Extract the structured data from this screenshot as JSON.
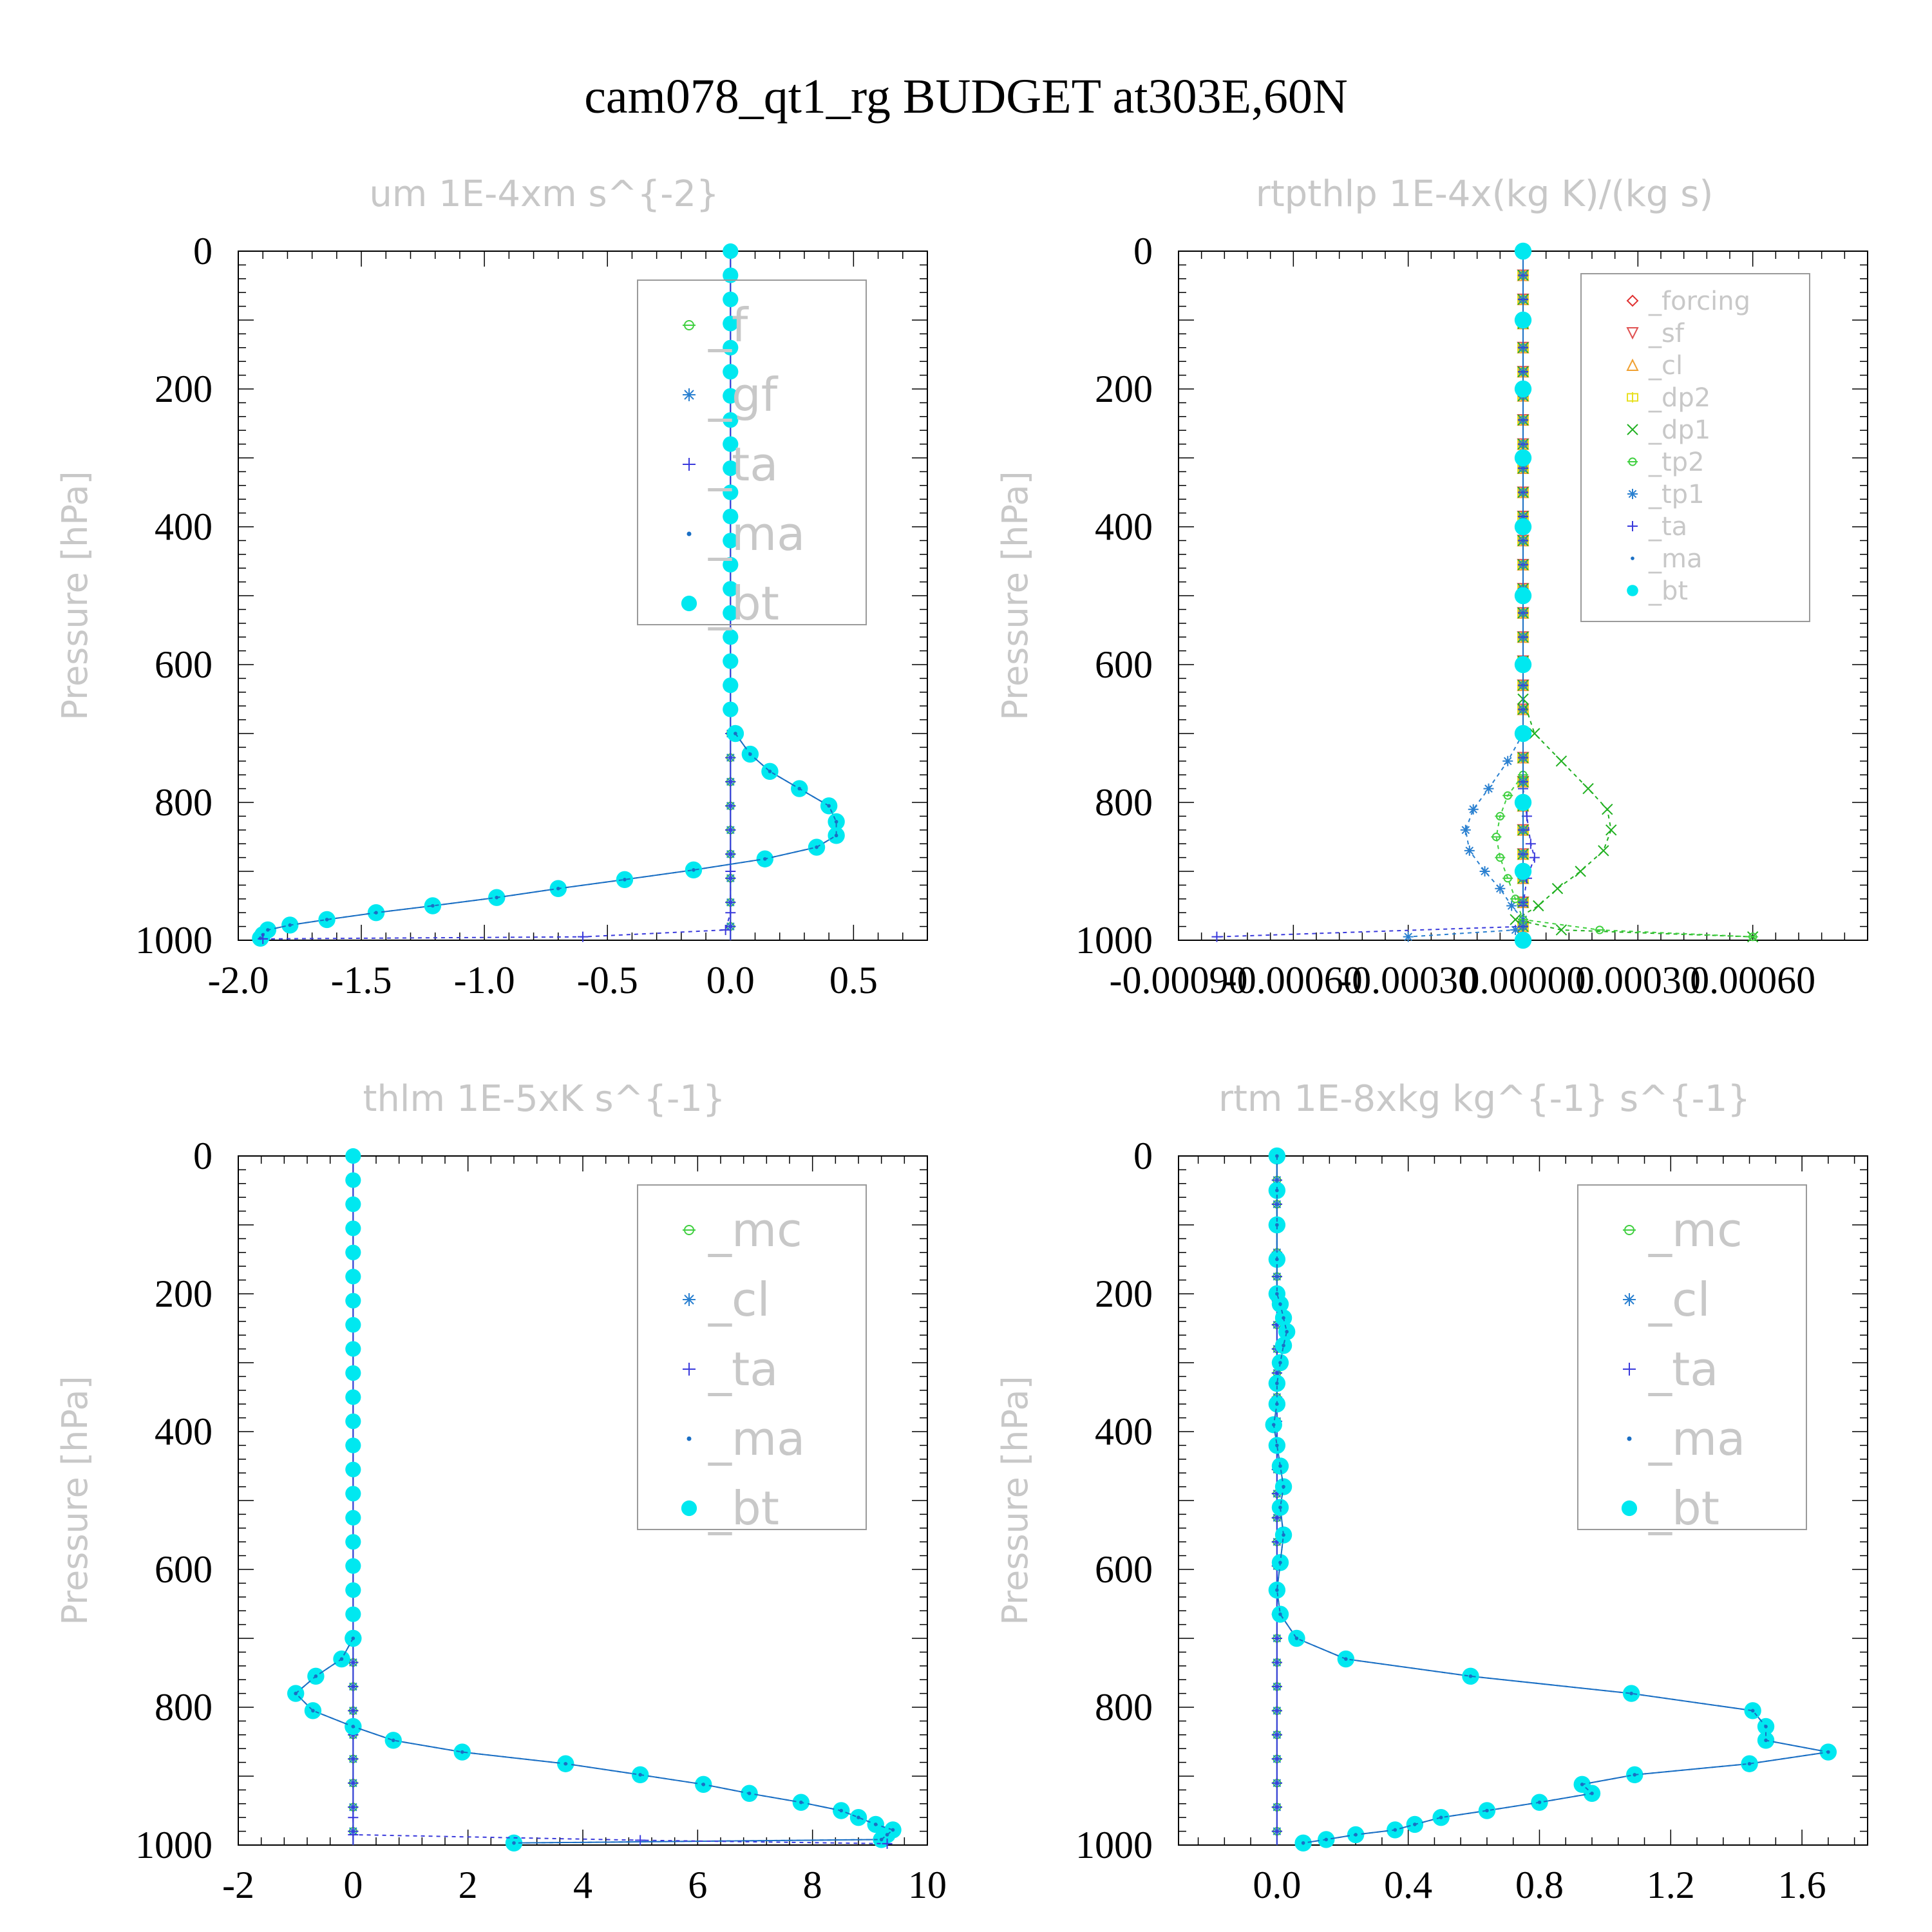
{
  "figure_title": "cam078_qt1_rg  BUDGET at303E,60N",
  "colors": {
    "bt": "#00e8f0",
    "ma": "#1a6fc4",
    "ta": "#3a3adc",
    "gf": "#2a80d0",
    "f": "#40d040",
    "mc": "#40d040",
    "cl_blue": "#2a80d0",
    "forcing": "#e03030",
    "sf": "#e05050",
    "cl_orange": "#f0a030",
    "dp2": "#e8e020",
    "dp1": "#20b020",
    "tp2": "#40d040",
    "tp1": "#2a80d0",
    "legend_text": "#c8c8c8"
  },
  "chart_data": [
    {
      "type": "line",
      "title": "um  1E-4xm s^{-2}",
      "ylabel": "Pressure [hPa]",
      "xlabel": "",
      "xlim": [
        -2.0,
        0.8
      ],
      "ylim": [
        1000,
        0
      ],
      "xticks": [
        "-2.0",
        "-1.5",
        "-1.0",
        "-0.5",
        "0.0",
        "0.5"
      ],
      "xtick_values": [
        -2.0,
        -1.5,
        -1.0,
        -0.5,
        0.0,
        0.5
      ],
      "yticks": [
        0,
        200,
        400,
        600,
        800,
        1000
      ],
      "legend": {
        "position": "top-right",
        "style": "big",
        "entries": [
          {
            "label": "_f",
            "key": "f"
          },
          {
            "label": "_gf",
            "key": "gf"
          },
          {
            "label": "_ta",
            "key": "ta"
          },
          {
            "label": "_ma",
            "key": "ma"
          },
          {
            "label": "_bt",
            "key": "bt"
          }
        ]
      },
      "series": [
        {
          "name": "_bt",
          "key": "bt",
          "pressure": [
            700,
            730,
            755,
            780,
            805,
            828,
            848,
            865,
            882,
            898,
            912,
            925,
            938,
            950,
            960,
            970,
            978,
            985,
            992,
            997
          ],
          "values": [
            0.02,
            0.08,
            0.16,
            0.28,
            0.4,
            0.43,
            0.43,
            0.35,
            0.14,
            -0.15,
            -0.43,
            -0.7,
            -0.95,
            -1.21,
            -1.44,
            -1.64,
            -1.79,
            -1.88,
            -1.9,
            -1.91
          ]
        },
        {
          "name": "_ma",
          "key": "ma",
          "pressure": [
            700,
            730,
            755,
            780,
            805,
            828,
            848,
            865,
            882,
            898,
            912,
            925,
            938,
            950,
            960,
            970,
            978,
            985,
            992,
            997
          ],
          "values": [
            0.02,
            0.08,
            0.16,
            0.28,
            0.4,
            0.43,
            0.43,
            0.35,
            0.14,
            -0.15,
            -0.43,
            -0.7,
            -0.95,
            -1.21,
            -1.44,
            -1.64,
            -1.79,
            -1.88,
            -1.9,
            -1.91
          ]
        },
        {
          "name": "_ta",
          "key": "ta",
          "pressure": [
            900,
            960,
            985,
            995,
            998
          ],
          "values": [
            0.0,
            0.0,
            -0.02,
            -0.6,
            -1.9
          ]
        }
      ]
    },
    {
      "type": "line",
      "title": "rtpthlp  1E-4x(kg K)/(kg s)",
      "ylabel": "Pressure [hPa]",
      "xlabel": "",
      "xlim": [
        -0.0009,
        0.0009
      ],
      "ylim": [
        1000,
        0
      ],
      "xticks": [
        "-0.00090",
        "-0.00060",
        "-0.00030",
        "0.00000",
        "0.00030",
        "0.00060"
      ],
      "xtick_values": [
        -0.0009,
        -0.0006,
        -0.0003,
        0.0,
        0.0003,
        0.0006
      ],
      "yticks": [
        0,
        200,
        400,
        600,
        800,
        1000
      ],
      "legend": {
        "position": "top-right",
        "style": "small",
        "entries": [
          {
            "label": "_forcing",
            "key": "forcing"
          },
          {
            "label": "_sf",
            "key": "sf"
          },
          {
            "label": "_cl",
            "key": "cl_orange"
          },
          {
            "label": "_dp2",
            "key": "dp2"
          },
          {
            "label": "_dp1",
            "key": "dp1"
          },
          {
            "label": "_tp2",
            "key": "tp2"
          },
          {
            "label": "_tp1",
            "key": "tp1"
          },
          {
            "label": "_ta",
            "key": "ta"
          },
          {
            "label": "_ma",
            "key": "ma"
          },
          {
            "label": "_bt",
            "key": "bt"
          }
        ]
      },
      "series": [
        {
          "name": "_dp1",
          "key": "dp1",
          "pressure": [
            650,
            700,
            740,
            780,
            810,
            840,
            870,
            900,
            925,
            950,
            970,
            985,
            995
          ],
          "values": [
            0.0,
            3e-05,
            0.0001,
            0.00017,
            0.00022,
            0.00023,
            0.00021,
            0.00015,
            9e-05,
            4e-05,
            -2e-05,
            0.0001,
            0.0006
          ]
        },
        {
          "name": "_tp1",
          "key": "tp1",
          "pressure": [
            700,
            740,
            780,
            810,
            840,
            870,
            900,
            925,
            950,
            970,
            985,
            995
          ],
          "values": [
            0.0,
            -4e-05,
            -9e-05,
            -0.00013,
            -0.00015,
            -0.00014,
            -0.0001,
            -6e-05,
            -3e-05,
            0.0,
            -2e-05,
            -0.0003
          ]
        },
        {
          "name": "_tp2",
          "key": "tp2",
          "pressure": [
            760,
            790,
            820,
            850,
            880,
            910,
            940,
            970,
            985,
            995
          ],
          "values": [
            0.0,
            -4e-05,
            -6e-05,
            -7e-05,
            -6e-05,
            -4e-05,
            -2e-05,
            0.0,
            0.0002,
            0.0006
          ]
        },
        {
          "name": "_ta",
          "key": "ta",
          "pressure": [
            780,
            820,
            860,
            880,
            910,
            950,
            980,
            995
          ],
          "values": [
            0.0,
            1e-05,
            2e-05,
            3e-05,
            1e-05,
            0.0,
            0.0,
            -0.0008
          ]
        },
        {
          "name": "_bt",
          "key": "bt",
          "pressure": [
            0,
            100,
            200,
            300,
            400,
            500,
            600,
            700,
            800,
            900,
            1000
          ],
          "values": [
            0,
            0,
            0,
            0,
            0,
            0,
            0,
            0,
            0,
            0,
            0
          ]
        }
      ]
    },
    {
      "type": "line",
      "title": "thlm  1E-5xK s^{-1}",
      "ylabel": "Pressure [hPa]",
      "xlabel": "",
      "xlim": [
        -2,
        10
      ],
      "ylim": [
        1000,
        0
      ],
      "xticks": [
        "-2",
        "0",
        "2",
        "4",
        "6",
        "8",
        "10"
      ],
      "xtick_values": [
        -2,
        0,
        2,
        4,
        6,
        8,
        10
      ],
      "yticks": [
        0,
        200,
        400,
        600,
        800,
        1000
      ],
      "legend": {
        "position": "top-right",
        "style": "big",
        "entries": [
          {
            "label": "_mc",
            "key": "mc"
          },
          {
            "label": "_cl",
            "key": "cl_blue"
          },
          {
            "label": "_ta",
            "key": "ta"
          },
          {
            "label": "_ma",
            "key": "ma"
          },
          {
            "label": "_bt",
            "key": "bt"
          }
        ]
      },
      "series": [
        {
          "name": "_bt",
          "key": "bt",
          "pressure": [
            700,
            730,
            755,
            780,
            805,
            828,
            848,
            865,
            882,
            898,
            912,
            925,
            938,
            950,
            960,
            970,
            978,
            985,
            992,
            997
          ],
          "values": [
            0.0,
            -0.2,
            -0.65,
            -1.0,
            -0.7,
            0.0,
            0.7,
            1.9,
            3.7,
            5.0,
            6.1,
            6.9,
            7.8,
            8.5,
            8.8,
            9.1,
            9.4,
            9.3,
            9.2,
            2.8
          ]
        },
        {
          "name": "_ma",
          "key": "ma",
          "pressure": [
            700,
            730,
            755,
            780,
            805,
            828,
            848,
            865,
            882,
            898,
            912,
            925,
            938,
            950,
            960,
            970,
            978,
            985,
            992,
            997
          ],
          "values": [
            0.0,
            -0.2,
            -0.65,
            -1.0,
            -0.7,
            0.0,
            0.7,
            1.9,
            3.7,
            5.0,
            6.1,
            6.9,
            7.8,
            8.5,
            8.8,
            9.1,
            9.4,
            9.3,
            9.2,
            2.8
          ]
        },
        {
          "name": "_ta",
          "key": "ta",
          "pressure": [
            960,
            985,
            993,
            998
          ],
          "values": [
            0.0,
            0.0,
            5.0,
            9.3
          ]
        }
      ]
    },
    {
      "type": "line",
      "title": "rtm  1E-8xkg kg^{-1} s^{-1}",
      "ylabel": "Pressure [hPa]",
      "xlabel": "",
      "xlim": [
        -0.3,
        1.8
      ],
      "ylim": [
        1000,
        0
      ],
      "xticks": [
        "0.0",
        "0.4",
        "0.8",
        "1.2",
        "1.6"
      ],
      "xtick_values": [
        0.0,
        0.4,
        0.8,
        1.2,
        1.6
      ],
      "yticks": [
        0,
        200,
        400,
        600,
        800,
        1000
      ],
      "legend": {
        "position": "top-right",
        "style": "big",
        "entries": [
          {
            "label": "_mc",
            "key": "mc"
          },
          {
            "label": "_cl",
            "key": "cl_blue"
          },
          {
            "label": "_ta",
            "key": "ta"
          },
          {
            "label": "_ma",
            "key": "ma"
          },
          {
            "label": "_bt",
            "key": "bt"
          }
        ]
      },
      "series": [
        {
          "name": "_bt",
          "key": "bt",
          "pressure": [
            0,
            50,
            100,
            150,
            200,
            215,
            235,
            255,
            275,
            300,
            330,
            360,
            390,
            420,
            450,
            480,
            510,
            550,
            590,
            630,
            665,
            700,
            730,
            755,
            780,
            805,
            828,
            848,
            865,
            882,
            898,
            912,
            925,
            938,
            950,
            960,
            970,
            978,
            985,
            992,
            997
          ],
          "values": [
            0.0,
            0.0,
            0.0,
            0.0,
            0.0,
            0.01,
            0.02,
            0.03,
            0.02,
            0.01,
            0.0,
            0.0,
            -0.01,
            0.0,
            0.01,
            0.02,
            0.01,
            0.02,
            0.01,
            0.0,
            0.01,
            0.06,
            0.21,
            0.59,
            1.08,
            1.45,
            1.49,
            1.49,
            1.68,
            1.44,
            1.09,
            0.93,
            0.96,
            0.8,
            0.64,
            0.5,
            0.42,
            0.36,
            0.24,
            0.15,
            0.08
          ]
        },
        {
          "name": "_ma",
          "key": "ma",
          "pressure": [
            0,
            50,
            100,
            150,
            200,
            215,
            235,
            255,
            275,
            300,
            330,
            360,
            390,
            420,
            450,
            480,
            510,
            550,
            590,
            630,
            665,
            700,
            730,
            755,
            780,
            805,
            828,
            848,
            865,
            882,
            898,
            912,
            925,
            938,
            950,
            960,
            970,
            978,
            985,
            992,
            997
          ],
          "values": [
            0.0,
            0.0,
            0.0,
            0.0,
            0.0,
            0.01,
            0.02,
            0.03,
            0.02,
            0.01,
            0.0,
            0.0,
            -0.01,
            0.0,
            0.01,
            0.02,
            0.01,
            0.02,
            0.01,
            0.0,
            0.01,
            0.06,
            0.21,
            0.59,
            1.08,
            1.45,
            1.49,
            1.49,
            1.68,
            1.44,
            1.09,
            0.93,
            0.96,
            0.8,
            0.64,
            0.5,
            0.42,
            0.36,
            0.24,
            0.15,
            0.08
          ]
        }
      ]
    }
  ]
}
